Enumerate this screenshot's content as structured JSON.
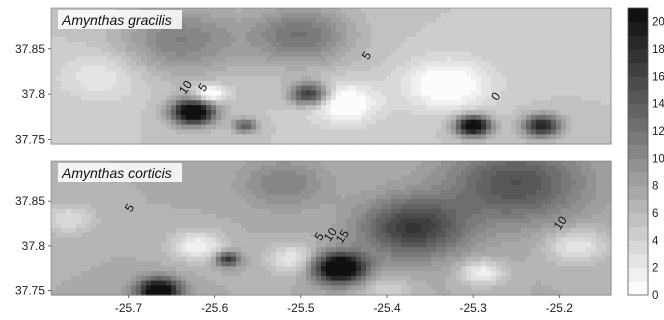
{
  "chart_data": {
    "type": "heatmap",
    "colorbar": {
      "ticks": [
        0,
        2,
        4,
        6,
        8,
        10,
        12,
        14,
        16,
        18,
        20
      ],
      "range": [
        0,
        21
      ],
      "colors": {
        "low": "#ffffff",
        "high": "#111111"
      }
    },
    "x_ticks": [
      -25.7,
      -25.6,
      -25.5,
      -25.4,
      -25.3,
      -25.2
    ],
    "xlim": [
      -25.79,
      -25.14
    ],
    "ylim": [
      37.745,
      37.895
    ],
    "panels": [
      {
        "title": "Amynthas gracilis",
        "y_ticks": [
          37.75,
          37.8,
          37.85
        ],
        "contour_labels": [
          {
            "text": "10",
            "x": -25.63,
            "y": 37.805
          },
          {
            "text": "5",
            "x": -25.61,
            "y": 37.805
          },
          {
            "text": "5",
            "x": -25.42,
            "y": 37.84
          },
          {
            "text": "0",
            "x": -25.27,
            "y": 37.795
          }
        ],
        "hotspots": [
          {
            "x": -25.625,
            "y": 37.78,
            "value": 20,
            "spread": 0.025
          },
          {
            "x": -25.49,
            "y": 37.8,
            "value": 13,
            "spread": 0.022
          },
          {
            "x": -25.3,
            "y": 37.765,
            "value": 19,
            "spread": 0.02
          },
          {
            "x": -25.22,
            "y": 37.765,
            "value": 14,
            "spread": 0.022
          },
          {
            "x": -25.565,
            "y": 37.765,
            "value": 9,
            "spread": 0.014
          },
          {
            "x": -25.5,
            "y": 37.865,
            "value": 7,
            "spread": 0.06
          },
          {
            "x": -25.64,
            "y": 37.86,
            "value": 6,
            "spread": 0.07
          }
        ],
        "coldspots": [
          {
            "x": -25.605,
            "y": 37.8,
            "value": -7,
            "spread": 0.018
          },
          {
            "x": -25.45,
            "y": 37.79,
            "value": -6,
            "spread": 0.04
          },
          {
            "x": -25.33,
            "y": 37.81,
            "value": -6,
            "spread": 0.05
          },
          {
            "x": -25.73,
            "y": 37.82,
            "value": -3,
            "spread": 0.05
          }
        ],
        "base": 5
      },
      {
        "title": "Amynthas corticis",
        "y_ticks": [
          37.75,
          37.8,
          37.85
        ],
        "contour_labels": [
          {
            "text": "5",
            "x": -25.695,
            "y": 37.84
          },
          {
            "text": "5",
            "x": -25.475,
            "y": 37.808
          },
          {
            "text": "10",
            "x": -25.462,
            "y": 37.81
          },
          {
            "text": "15",
            "x": -25.448,
            "y": 37.808
          },
          {
            "text": "10",
            "x": -25.195,
            "y": 37.823
          }
        ],
        "hotspots": [
          {
            "x": -25.455,
            "y": 37.775,
            "value": 19,
            "spread": 0.03
          },
          {
            "x": -25.37,
            "y": 37.82,
            "value": 10,
            "spread": 0.06
          },
          {
            "x": -25.25,
            "y": 37.87,
            "value": 8,
            "spread": 0.08
          },
          {
            "x": -25.665,
            "y": 37.75,
            "value": 17,
            "spread": 0.025
          },
          {
            "x": -25.585,
            "y": 37.785,
            "value": 11,
            "spread": 0.014
          },
          {
            "x": -25.52,
            "y": 37.87,
            "value": 4,
            "spread": 0.05
          }
        ],
        "coldspots": [
          {
            "x": -25.62,
            "y": 37.8,
            "value": -6,
            "spread": 0.03
          },
          {
            "x": -25.51,
            "y": 37.785,
            "value": -5,
            "spread": 0.03
          },
          {
            "x": -25.29,
            "y": 37.77,
            "value": -6,
            "spread": 0.025
          },
          {
            "x": -25.18,
            "y": 37.8,
            "value": -5,
            "spread": 0.035
          },
          {
            "x": -25.77,
            "y": 37.83,
            "value": -4,
            "spread": 0.03
          },
          {
            "x": -25.4,
            "y": 37.75,
            "value": -3,
            "spread": 0.03
          }
        ],
        "base": 7
      }
    ]
  }
}
